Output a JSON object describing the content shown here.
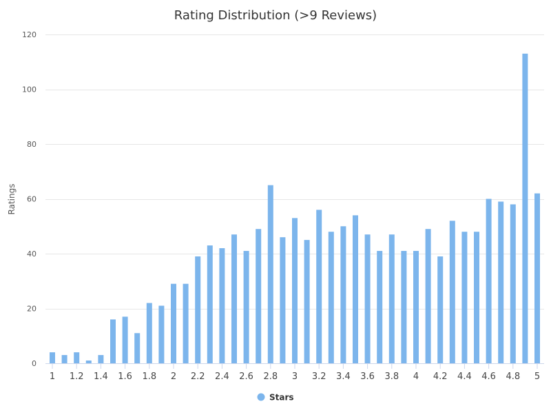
{
  "chart_data": {
    "type": "bar",
    "title": "Rating Distribution (>9 Reviews)",
    "xlabel": "",
    "ylabel": "Ratings",
    "ylim": [
      0,
      120
    ],
    "y_ticks": [
      0,
      20,
      40,
      60,
      80,
      100,
      120
    ],
    "x_ticks": [
      "1",
      "1.2",
      "1.4",
      "1.6",
      "1.8",
      "2",
      "2.2",
      "2.4",
      "2.6",
      "2.8",
      "3",
      "3.2",
      "3.4",
      "3.6",
      "3.8",
      "4",
      "4.2",
      "4.4",
      "4.6",
      "4.8",
      "5"
    ],
    "grid": true,
    "legend_position": "bottom-center",
    "colors": {
      "bar": "#7cb5ec",
      "grid": "#e6e6e6",
      "axis": "#ccd6eb"
    },
    "categories": [
      1.0,
      1.1,
      1.2,
      1.3,
      1.4,
      1.5,
      1.6,
      1.7,
      1.8,
      1.9,
      2.0,
      2.1,
      2.2,
      2.3,
      2.4,
      2.5,
      2.6,
      2.7,
      2.8,
      2.9,
      3.0,
      3.1,
      3.2,
      3.3,
      3.4,
      3.5,
      3.6,
      3.7,
      3.8,
      3.9,
      4.0,
      4.1,
      4.2,
      4.3,
      4.4,
      4.5,
      4.6,
      4.7,
      4.8,
      4.9,
      5.0
    ],
    "series": [
      {
        "name": "Stars",
        "values": [
          4,
          3,
          4,
          1,
          3,
          16,
          17,
          11,
          22,
          21,
          29,
          29,
          39,
          43,
          42,
          47,
          41,
          49,
          65,
          46,
          53,
          45,
          56,
          48,
          50,
          54,
          47,
          41,
          47,
          41,
          41,
          49,
          39,
          52,
          48,
          48,
          60,
          59,
          58,
          113,
          62
        ]
      }
    ]
  }
}
